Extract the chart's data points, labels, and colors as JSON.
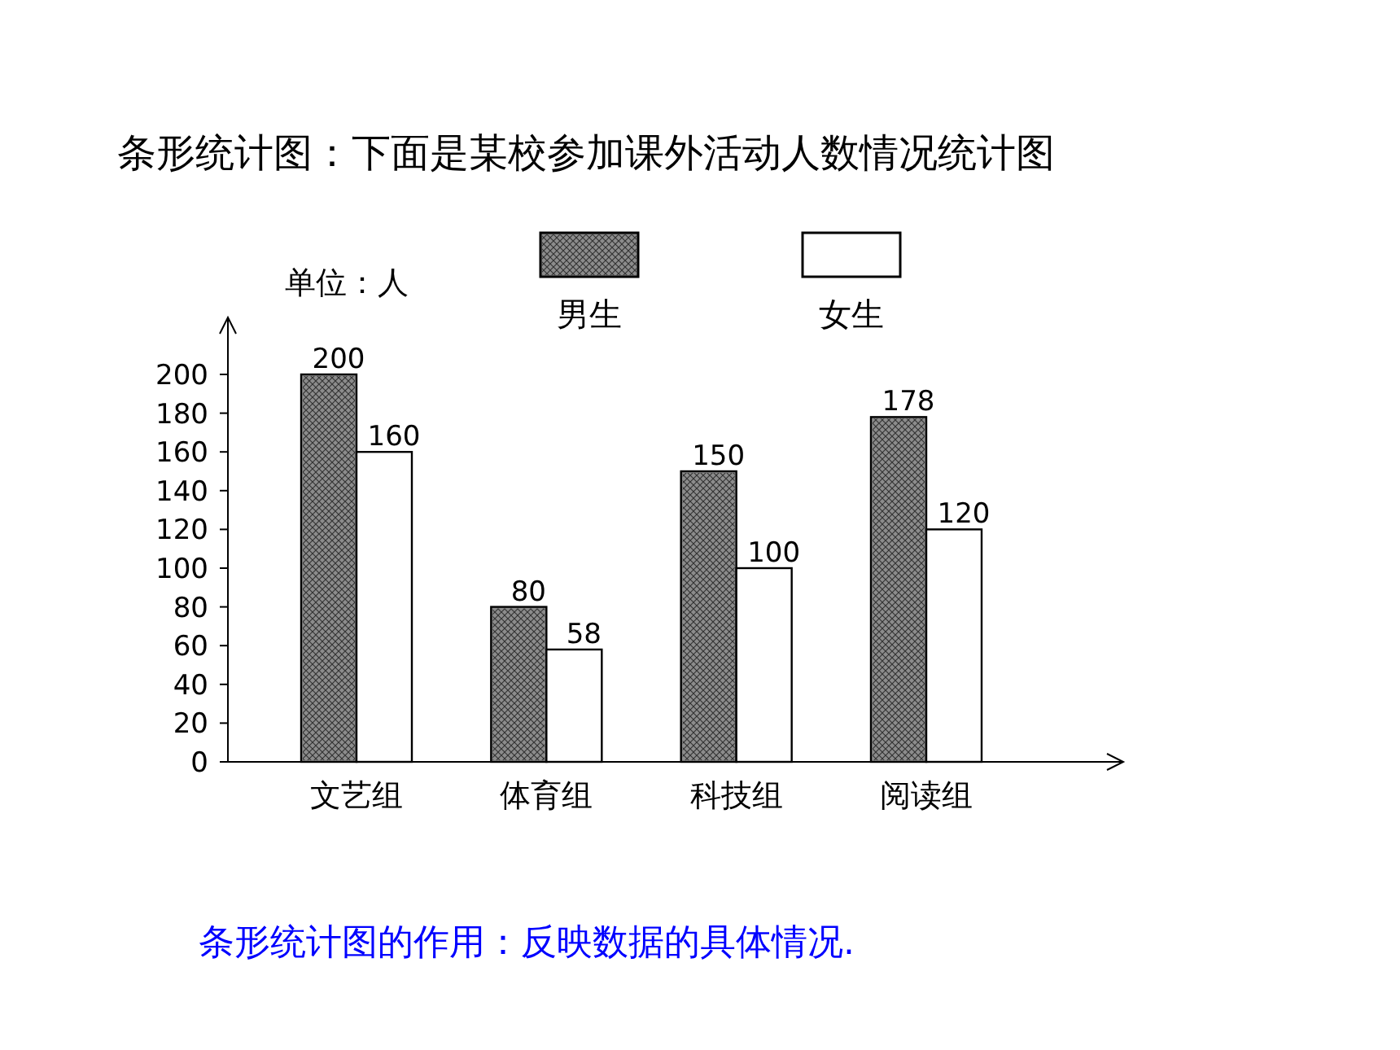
{
  "chart_data": {
    "type": "bar",
    "title": "条形统计图：下面是某校参加课外活动人数情况统计图",
    "ylabel": "单位：人",
    "annotations": [
      "条形统计图的作用：反映数据的具体情况."
    ],
    "categories": [
      "文艺组",
      "体育组",
      "科技组",
      "阅读组"
    ],
    "series": [
      {
        "name": "男生",
        "color": "#8c8c8c",
        "values": [
          200,
          80,
          150,
          178
        ]
      },
      {
        "name": "女生",
        "color": "#ffffff",
        "values": [
          160,
          58,
          100,
          120
        ]
      }
    ],
    "ylim": [
      0,
      200
    ],
    "yticks": [
      0,
      20,
      40,
      60,
      80,
      100,
      120,
      140,
      160,
      180,
      200
    ],
    "grid": false,
    "legend": "top",
    "data_labels": true
  }
}
